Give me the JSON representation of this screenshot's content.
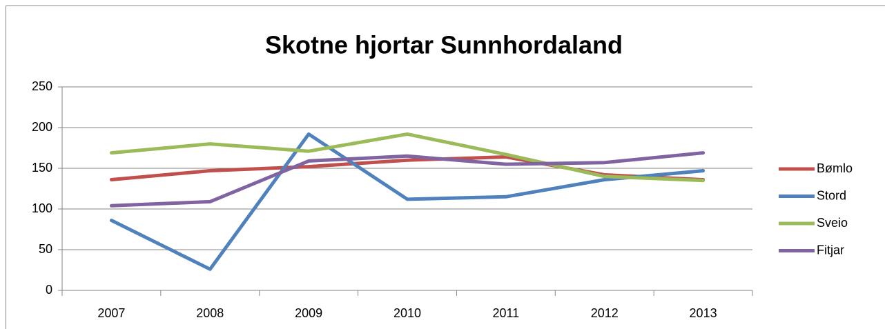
{
  "chart_data": {
    "type": "line",
    "title": "Skotne hjortar Sunnhordaland",
    "categories": [
      "2007",
      "2008",
      "2009",
      "2010",
      "2011",
      "2012",
      "2013"
    ],
    "series": [
      {
        "name": "Bømlo",
        "color": "#c0504d",
        "values": [
          136,
          147,
          152,
          160,
          164,
          142,
          136
        ]
      },
      {
        "name": "Stord",
        "color": "#4f81bd",
        "values": [
          86,
          26,
          192,
          112,
          115,
          136,
          147
        ]
      },
      {
        "name": "Sveio",
        "color": "#9bbb59",
        "values": [
          169,
          180,
          171,
          192,
          167,
          140,
          135
        ]
      },
      {
        "name": "Fitjar",
        "color": "#8064a2",
        "values": [
          104,
          109,
          159,
          165,
          155,
          157,
          169
        ]
      }
    ],
    "ylim": [
      0,
      250
    ],
    "yticks": [
      0,
      50,
      100,
      150,
      200,
      250
    ],
    "grid": true,
    "legend": "right"
  }
}
